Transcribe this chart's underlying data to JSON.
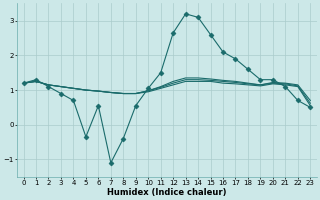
{
  "title": "",
  "xlabel": "Humidex (Indice chaleur)",
  "ylabel": "",
  "bg_color": "#cce8e8",
  "grid_color": "#aacccc",
  "line_color": "#1a6b6b",
  "xlim": [
    -0.5,
    23.5
  ],
  "ylim": [
    -1.5,
    3.5
  ],
  "yticks": [
    -1,
    0,
    1,
    2,
    3
  ],
  "xticks": [
    0,
    1,
    2,
    3,
    4,
    5,
    6,
    7,
    8,
    9,
    10,
    11,
    12,
    13,
    14,
    15,
    16,
    17,
    18,
    19,
    20,
    21,
    22,
    23
  ],
  "series": [
    {
      "x": [
        0,
        1,
        2,
        3,
        4,
        5,
        6,
        7,
        8,
        9,
        10,
        11,
        12,
        13,
        14,
        15,
        16,
        17,
        18,
        19,
        20,
        21,
        22,
        23
      ],
      "y": [
        1.2,
        1.3,
        1.1,
        0.9,
        0.7,
        -0.35,
        0.55,
        -1.1,
        -0.4,
        0.55,
        1.05,
        1.5,
        2.65,
        3.2,
        3.1,
        2.6,
        2.1,
        1.9,
        1.6,
        1.3,
        1.3,
        1.1,
        0.7,
        0.5
      ],
      "marker": "D",
      "markersize": 2.5
    },
    {
      "x": [
        0,
        1,
        2,
        3,
        4,
        5,
        6,
        7,
        8,
        9,
        10,
        11,
        12,
        13,
        14,
        15,
        16,
        17,
        18,
        19,
        20,
        21,
        22,
        23
      ],
      "y": [
        1.2,
        1.25,
        1.15,
        1.1,
        1.05,
        1.0,
        0.97,
        0.93,
        0.9,
        0.9,
        0.95,
        1.05,
        1.15,
        1.25,
        1.25,
        1.25,
        1.2,
        1.18,
        1.15,
        1.12,
        1.18,
        1.15,
        1.1,
        0.55
      ],
      "marker": null,
      "markersize": 0
    },
    {
      "x": [
        0,
        1,
        2,
        3,
        4,
        5,
        6,
        7,
        8,
        9,
        10,
        11,
        12,
        13,
        14,
        15,
        16,
        17,
        18,
        19,
        20,
        21,
        22,
        23
      ],
      "y": [
        1.2,
        1.25,
        1.15,
        1.1,
        1.05,
        1.0,
        0.97,
        0.93,
        0.9,
        0.9,
        0.98,
        1.08,
        1.2,
        1.3,
        1.3,
        1.28,
        1.25,
        1.22,
        1.18,
        1.15,
        1.2,
        1.18,
        1.12,
        0.62
      ],
      "marker": null,
      "markersize": 0
    },
    {
      "x": [
        0,
        1,
        2,
        3,
        4,
        5,
        6,
        7,
        8,
        9,
        10,
        11,
        12,
        13,
        14,
        15,
        16,
        17,
        18,
        19,
        20,
        21,
        22,
        23
      ],
      "y": [
        1.2,
        1.25,
        1.15,
        1.1,
        1.05,
        1.0,
        0.97,
        0.93,
        0.9,
        0.9,
        0.98,
        1.1,
        1.25,
        1.35,
        1.35,
        1.32,
        1.28,
        1.25,
        1.2,
        1.15,
        1.22,
        1.2,
        1.15,
        0.7
      ],
      "marker": null,
      "markersize": 0
    }
  ]
}
